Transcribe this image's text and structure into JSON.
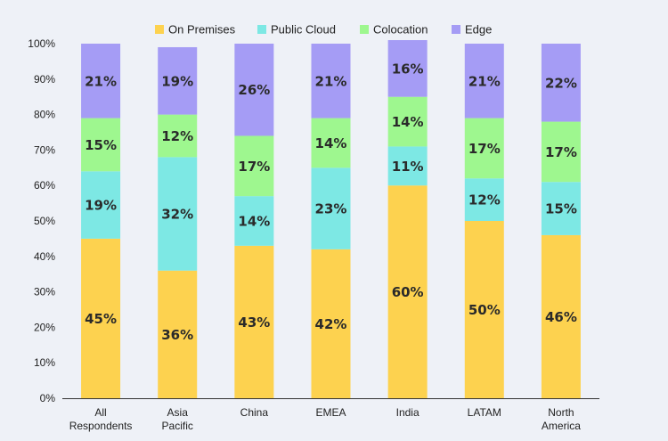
{
  "chart_data": {
    "type": "bar",
    "stacked": true,
    "title": "",
    "xlabel": "",
    "ylabel": "",
    "ylim": [
      0,
      100
    ],
    "y_ticks": [
      "0%",
      "10%",
      "20%",
      "30%",
      "40%",
      "50%",
      "60%",
      "70%",
      "80%",
      "90%",
      "100%"
    ],
    "categories": [
      [
        "All",
        "Respondents"
      ],
      [
        "Asia",
        "Pacific"
      ],
      [
        "China"
      ],
      [
        "EMEA"
      ],
      [
        "India"
      ],
      [
        "LATAM"
      ],
      [
        "North",
        "America"
      ]
    ],
    "legend_position": "top-center",
    "series": [
      {
        "name": "On Premises",
        "color": "#fdd24f",
        "values": [
          45,
          36,
          43,
          42,
          60,
          50,
          46
        ],
        "labels": [
          "45%",
          "36%",
          "43%",
          "42%",
          "60%",
          "50%",
          "46%"
        ]
      },
      {
        "name": "Public Cloud",
        "color": "#7de8e4",
        "values": [
          19,
          32,
          14,
          23,
          11,
          12,
          15
        ],
        "labels": [
          "19%",
          "32%",
          "14%",
          "23%",
          "11%",
          "12%",
          "15%"
        ]
      },
      {
        "name": "Colocation",
        "color": "#9ef78f",
        "values": [
          15,
          12,
          17,
          14,
          14,
          17,
          17
        ],
        "labels": [
          "15%",
          "12%",
          "17%",
          "14%",
          "14%",
          "17%",
          "17%"
        ]
      },
      {
        "name": "Edge",
        "color": "#a59cf5",
        "values": [
          21,
          19,
          26,
          21,
          16,
          21,
          22
        ],
        "labels": [
          "21%",
          "19%",
          "26%",
          "21%",
          "16%",
          "21%",
          "22%"
        ]
      }
    ],
    "grid": false
  }
}
